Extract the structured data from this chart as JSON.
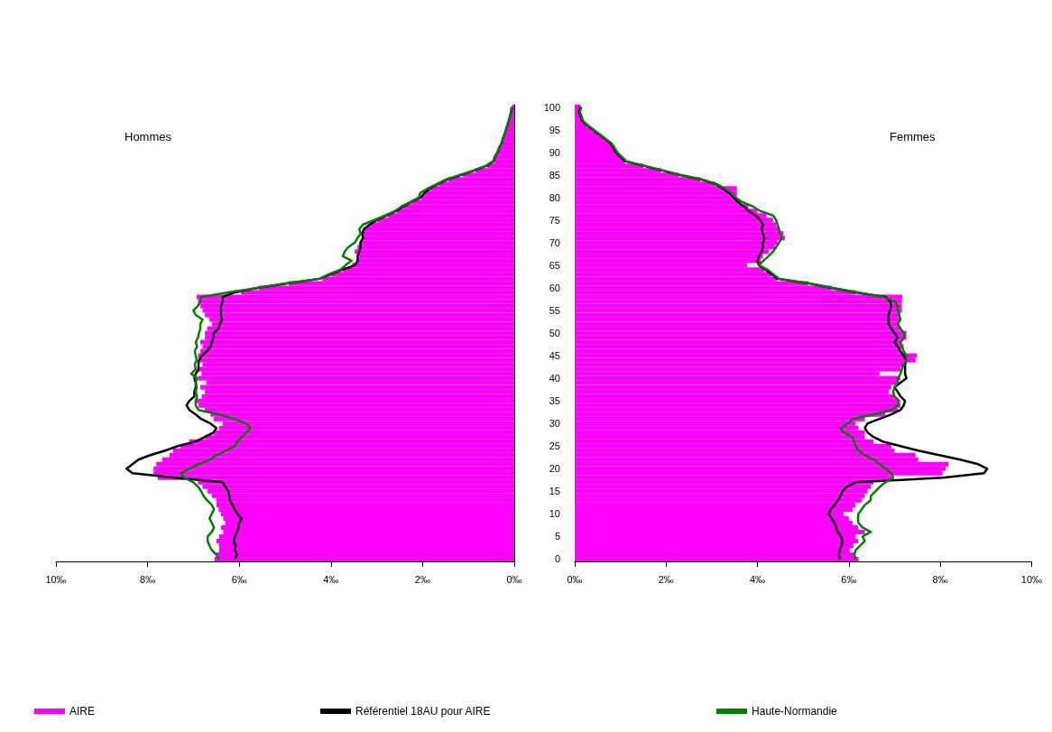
{
  "chart_data": [
    {
      "type": "bar",
      "title": "Hommes",
      "orientation": "horizontal",
      "legend": "bottom",
      "grid": false,
      "marker": "none",
      "tick_labels": "x",
      "categories": [
        "100",
        null,
        null,
        null,
        null,
        "95",
        null,
        null,
        null,
        null,
        "90",
        null,
        null,
        null,
        null,
        "85",
        null,
        null,
        null,
        null,
        "80",
        null,
        null,
        null,
        null,
        "75",
        null,
        null,
        null,
        null,
        "70",
        null,
        null,
        null,
        null,
        "65",
        null,
        null,
        null,
        null,
        "60",
        null,
        null,
        null,
        null,
        "55",
        null,
        null,
        null,
        null,
        "50",
        null,
        null,
        null,
        null,
        "45",
        null,
        null,
        null,
        null,
        "40",
        null,
        null,
        null,
        null,
        "35",
        null,
        null,
        null,
        null,
        "30",
        null,
        null,
        null,
        null,
        "25",
        null,
        null,
        null,
        null,
        "20",
        null,
        null,
        null,
        null,
        "15",
        null,
        null,
        null,
        null,
        "10",
        null,
        null,
        null,
        null,
        "5",
        null,
        null,
        null,
        null,
        "0"
      ],
      "xlim": [
        10,
        0
      ],
      "xticks": [
        {
          "value": 10,
          "label": "10‰"
        },
        {
          "value": 8,
          "label": "8‰"
        },
        {
          "value": 6,
          "label": "6‰"
        },
        {
          "value": 4,
          "label": "4‰"
        },
        {
          "value": 2,
          "label": "2‰"
        },
        {
          "value": 0,
          "label": "0‰"
        }
      ],
      "series": [
        {
          "name": "AIRE",
          "color": "#ff00ff",
          "values": [
            0.05,
            0.06,
            0.08,
            0.11,
            0.14,
            0.17,
            0.2,
            0.24,
            0.26,
            0.32,
            0.35,
            0.41,
            0.43,
            0.59,
            0.85,
            1.12,
            1.44,
            1.64,
            1.83,
            1.97,
            2.03,
            2.23,
            2.43,
            2.56,
            2.76,
            2.98,
            3.15,
            3.28,
            3.3,
            3.29,
            3.35,
            3.42,
            3.48,
            3.39,
            3.45,
            3.54,
            3.74,
            3.99,
            4.19,
            4.92,
            5.57,
            5.96,
            6.93,
            6.9,
            6.85,
            6.8,
            6.75,
            6.65,
            6.6,
            6.7,
            6.75,
            6.75,
            6.85,
            6.8,
            6.85,
            6.9,
            6.85,
            6.8,
            6.9,
            6.82,
            6.9,
            6.72,
            6.85,
            6.75,
            6.82,
            6.95,
            6.89,
            6.75,
            6.63,
            6.56,
            6.36,
            6.44,
            6.56,
            6.75,
            7.09,
            7.28,
            7.44,
            7.52,
            7.68,
            7.81,
            7.87,
            7.87,
            7.78,
            6.9,
            6.8,
            6.69,
            6.6,
            6.5,
            6.5,
            6.45,
            6.4,
            6.35,
            6.3,
            6.4,
            6.35,
            6.44,
            6.5,
            6.44,
            6.44,
            6.5,
            6.54
          ]
        },
        {
          "name": "Référentiel 18AU pour AIRE",
          "type": "line",
          "color": "#000000",
          "values": [
            0.05,
            0.07,
            0.09,
            0.12,
            0.15,
            0.18,
            0.21,
            0.25,
            0.27,
            0.33,
            0.36,
            0.42,
            0.45,
            0.6,
            0.86,
            1.14,
            1.45,
            1.65,
            1.84,
            1.96,
            2.04,
            2.24,
            2.42,
            2.57,
            2.78,
            3.0,
            3.15,
            3.28,
            3.32,
            3.3,
            3.36,
            3.35,
            3.38,
            3.42,
            3.41,
            3.48,
            3.75,
            4.0,
            4.25,
            4.95,
            5.6,
            6.1,
            6.36,
            6.36,
            6.4,
            6.4,
            6.4,
            6.38,
            6.42,
            6.45,
            6.56,
            6.56,
            6.6,
            6.63,
            6.7,
            6.82,
            6.88,
            6.89,
            6.89,
            6.95,
            6.98,
            6.95,
            6.95,
            6.98,
            6.98,
            7.09,
            7.15,
            7.09,
            6.95,
            6.83,
            6.63,
            6.5,
            6.56,
            6.75,
            6.95,
            7.34,
            7.62,
            7.94,
            8.2,
            8.33,
            8.46,
            8.33,
            7.4,
            6.36,
            6.3,
            6.24,
            6.22,
            6.2,
            6.15,
            6.1,
            6.04,
            5.95,
            6.0,
            6.02,
            6.05,
            6.1,
            6.12,
            6.08,
            6.1,
            6.05,
            6.1
          ]
        },
        {
          "name": "Haute-Normandie",
          "type": "line",
          "color": "#008000",
          "values": [
            0.06,
            0.07,
            0.09,
            0.12,
            0.15,
            0.18,
            0.21,
            0.25,
            0.28,
            0.33,
            0.37,
            0.43,
            0.46,
            0.62,
            0.88,
            1.18,
            1.48,
            1.68,
            1.88,
            2.05,
            2.08,
            2.26,
            2.46,
            2.6,
            2.82,
            3.05,
            3.3,
            3.38,
            3.35,
            3.42,
            3.48,
            3.62,
            3.7,
            3.74,
            3.55,
            3.68,
            3.8,
            4.05,
            4.25,
            5.0,
            5.6,
            6.24,
            6.83,
            6.85,
            6.9,
            7.0,
            6.95,
            6.8,
            6.85,
            6.85,
            6.88,
            6.9,
            6.95,
            6.92,
            6.97,
            6.95,
            6.93,
            6.97,
            6.95,
            7.05,
            6.92,
            6.95,
            6.93,
            6.95,
            6.92,
            6.95,
            6.95,
            6.89,
            6.44,
            6.1,
            5.85,
            5.75,
            5.85,
            5.94,
            6.04,
            6.1,
            6.3,
            6.5,
            6.63,
            6.89,
            7.09,
            7.28,
            7.2,
            7.0,
            6.9,
            6.83,
            6.78,
            6.7,
            6.6,
            6.55,
            6.6,
            6.65,
            6.6,
            6.55,
            6.6,
            6.69,
            6.69,
            6.65,
            6.6,
            6.5,
            6.44
          ]
        }
      ]
    },
    {
      "type": "bar",
      "title": "Femmes",
      "orientation": "horizontal",
      "grid": false,
      "marker": "none",
      "categories": [
        "100",
        null,
        null,
        null,
        null,
        "95",
        null,
        null,
        null,
        null,
        "90",
        null,
        null,
        null,
        null,
        "85",
        null,
        null,
        null,
        null,
        "80",
        null,
        null,
        null,
        null,
        "75",
        null,
        null,
        null,
        null,
        "70",
        null,
        null,
        null,
        null,
        "65",
        null,
        null,
        null,
        null,
        "60",
        null,
        null,
        null,
        null,
        "55",
        null,
        null,
        null,
        null,
        "50",
        null,
        null,
        null,
        null,
        "45",
        null,
        null,
        null,
        null,
        "40",
        null,
        null,
        null,
        null,
        "35",
        null,
        null,
        null,
        null,
        "30",
        null,
        null,
        null,
        null,
        "25",
        null,
        null,
        null,
        null,
        "20",
        null,
        null,
        null,
        null,
        "15",
        null,
        null,
        null,
        null,
        "10",
        null,
        null,
        null,
        null,
        "5",
        null,
        null,
        null,
        null,
        "0"
      ],
      "xlim": [
        0,
        10
      ],
      "xticks": [
        {
          "value": 0,
          "label": "0‰"
        },
        {
          "value": 2,
          "label": "2‰"
        },
        {
          "value": 4,
          "label": "4‰"
        },
        {
          "value": 6,
          "label": "6‰"
        },
        {
          "value": 8,
          "label": "8‰"
        },
        {
          "value": 10,
          "label": "10‰"
        }
      ],
      "series": [
        {
          "color": "#ff00ff",
          "values": [
            0.13,
            0.09,
            0.13,
            0.16,
            0.26,
            0.39,
            0.52,
            0.65,
            0.78,
            0.85,
            0.9,
            1.0,
            1.1,
            1.5,
            1.89,
            2.28,
            2.75,
            3.07,
            3.55,
            3.55,
            3.55,
            3.63,
            3.8,
            4.0,
            4.2,
            4.34,
            4.41,
            4.47,
            4.57,
            4.6,
            4.44,
            4.38,
            4.25,
            4.12,
            4.07,
            3.77,
            4.15,
            4.32,
            4.44,
            5.11,
            5.62,
            6.15,
            7.17,
            7.16,
            7.16,
            7.16,
            7.13,
            7.13,
            7.07,
            7.13,
            7.26,
            7.26,
            7.13,
            7.2,
            7.13,
            7.49,
            7.46,
            7.2,
            7.13,
            6.67,
            7.13,
            7.07,
            6.93,
            6.87,
            7.0,
            7.07,
            7.13,
            7.07,
            6.8,
            6.35,
            6.15,
            6.21,
            6.35,
            6.35,
            6.54,
            6.93,
            7.0,
            7.46,
            7.52,
            8.18,
            8.12,
            8.05,
            6.93,
            6.54,
            6.48,
            6.41,
            6.35,
            6.28,
            6.15,
            6.08,
            5.89,
            6.0,
            6.08,
            6.2,
            6.35,
            6.15,
            6.21,
            6.1,
            6.02,
            6.1,
            6.21
          ]
        },
        {
          "type": "line",
          "color": "#000000",
          "values": [
            0.13,
            0.09,
            0.13,
            0.16,
            0.26,
            0.39,
            0.52,
            0.65,
            0.78,
            0.85,
            0.9,
            1.0,
            1.1,
            1.5,
            1.89,
            2.28,
            2.75,
            3.07,
            3.24,
            3.38,
            3.48,
            3.57,
            3.7,
            3.8,
            3.96,
            4.06,
            4.12,
            4.09,
            4.12,
            4.15,
            4.12,
            4.12,
            4.09,
            4.03,
            4.0,
            4.03,
            4.18,
            4.32,
            4.44,
            5.11,
            5.62,
            6.15,
            6.8,
            6.9,
            6.93,
            6.9,
            6.87,
            6.87,
            6.87,
            6.93,
            7.0,
            7.07,
            7.0,
            7.07,
            7.13,
            7.2,
            7.26,
            7.23,
            7.23,
            7.23,
            7.26,
            7.13,
            7.0,
            7.07,
            7.13,
            7.23,
            7.2,
            7.13,
            6.93,
            6.67,
            6.41,
            6.35,
            6.41,
            6.54,
            6.74,
            7.13,
            7.52,
            7.98,
            8.44,
            8.83,
            9.03,
            8.96,
            8.06,
            6.15,
            5.95,
            5.86,
            5.82,
            5.76,
            5.69,
            5.6,
            5.56,
            5.62,
            5.69,
            5.72,
            5.76,
            5.83,
            5.86,
            5.84,
            5.8,
            5.78,
            5.8
          ]
        },
        {
          "type": "line",
          "color": "#008000",
          "values": [
            0.15,
            0.11,
            0.15,
            0.18,
            0.28,
            0.41,
            0.54,
            0.67,
            0.8,
            0.87,
            0.93,
            1.03,
            1.13,
            1.53,
            1.92,
            2.31,
            2.78,
            3.1,
            3.28,
            3.42,
            3.52,
            3.66,
            3.9,
            4.06,
            4.34,
            4.41,
            4.44,
            4.47,
            4.5,
            4.54,
            4.47,
            4.41,
            4.34,
            4.24,
            4.13,
            4.03,
            4.22,
            4.35,
            4.48,
            5.15,
            5.65,
            6.2,
            6.74,
            7.0,
            7.07,
            7.07,
            7.1,
            7.13,
            7.07,
            7.13,
            7.2,
            7.22,
            7.13,
            7.16,
            7.2,
            7.26,
            7.26,
            7.2,
            7.16,
            7.13,
            7.07,
            7.07,
            7.0,
            6.97,
            7.0,
            7.1,
            7.07,
            6.93,
            6.54,
            6.08,
            5.99,
            5.82,
            5.89,
            6.08,
            6.12,
            6.15,
            6.21,
            6.35,
            6.54,
            6.68,
            6.8,
            6.93,
            6.97,
            6.8,
            6.68,
            6.58,
            6.48,
            6.48,
            6.35,
            6.28,
            6.21,
            6.2,
            6.21,
            6.3,
            6.48,
            6.3,
            6.35,
            6.25,
            6.15,
            6.12,
            6.15
          ]
        }
      ]
    }
  ]
}
